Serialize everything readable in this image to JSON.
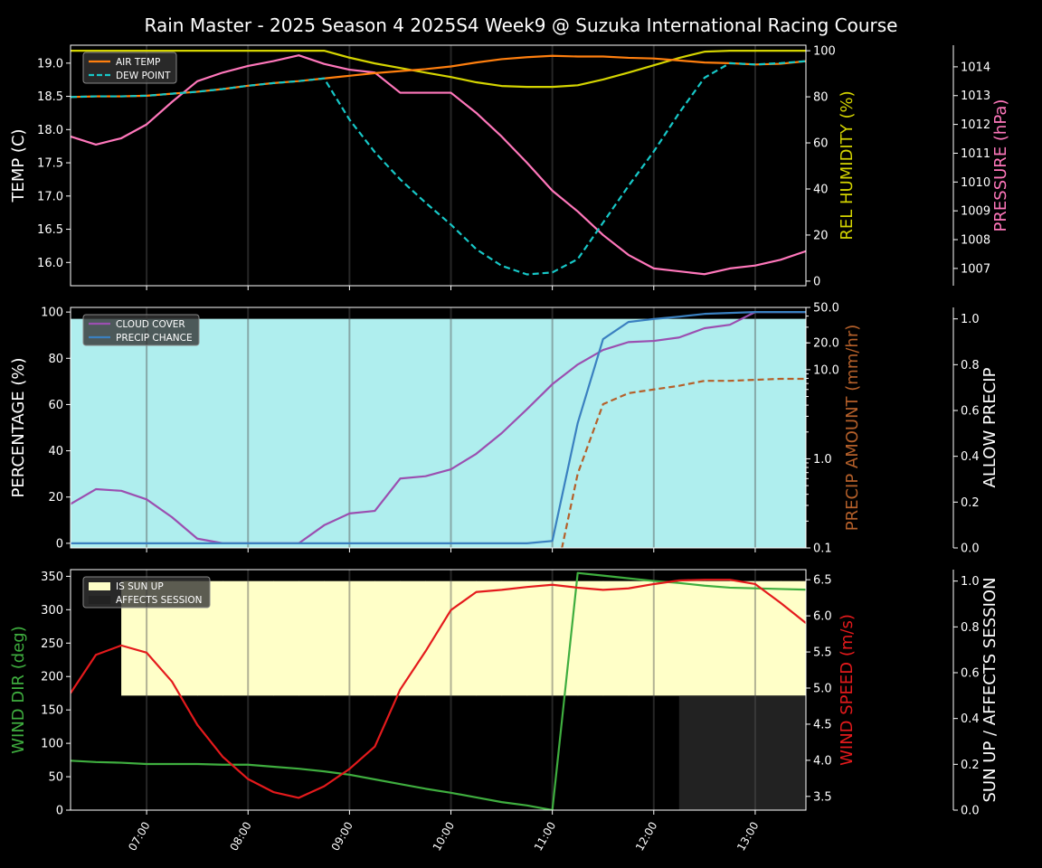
{
  "title": "Rain Master - 2025 Season 4 2025S4 Week9 @ Suzuka International Racing Course",
  "x_tick_labels": [
    "07:00",
    "08:00",
    "09:00",
    "10:00",
    "11:00",
    "12:00",
    "13:00"
  ],
  "chart_data": [
    {
      "type": "line",
      "name": "weather-panel",
      "x_hours": [
        6.25,
        6.5,
        6.75,
        7,
        7.25,
        7.5,
        7.75,
        8,
        8.25,
        8.5,
        8.75,
        9,
        9.25,
        9.5,
        9.75,
        10,
        10.25,
        10.5,
        10.75,
        11,
        11.25,
        11.5,
        11.75,
        12,
        12.25,
        12.5,
        12.75,
        13,
        13.25,
        13.5
      ],
      "xlim": [
        6.25,
        13.5
      ],
      "axes": [
        {
          "id": "temp",
          "label": "TEMP (C)",
          "color": "#ffffff",
          "ylim": [
            15.65,
            19.27
          ],
          "ticks": [
            16.0,
            16.5,
            17.0,
            17.5,
            18.0,
            18.5,
            19.0
          ],
          "decimals": 1,
          "side": "left"
        },
        {
          "id": "hum",
          "label": "REL HUMIDITY (%)",
          "color": "#d4d400",
          "ylim": [
            -2,
            102.4
          ],
          "ticks": [
            0,
            20,
            40,
            60,
            80,
            100
          ],
          "decimals": 0,
          "side": "right"
        },
        {
          "id": "pres",
          "label": "PRESSURE (hPa)",
          "color": "#ff77bb",
          "ylim": [
            1006.4,
            1014.75
          ],
          "ticks": [
            1007,
            1008,
            1009,
            1010,
            1011,
            1012,
            1013,
            1014
          ],
          "decimals": 0,
          "side": "right2"
        }
      ],
      "fills": [],
      "series": [
        {
          "name": "REL HUMIDITY",
          "axis": "hum",
          "color": "#d4d400",
          "dash": false,
          "legend": false,
          "values": [
            100,
            100,
            100,
            100,
            100,
            100,
            100,
            100,
            100,
            100,
            100,
            97,
            94.5,
            92.5,
            90.5,
            88.6,
            86.3,
            84.7,
            84.3,
            84.3,
            85,
            87.5,
            90.5,
            93.7,
            96.9,
            99.6,
            100,
            100,
            100,
            100
          ]
        },
        {
          "name": "PRESSURE",
          "axis": "pres",
          "color": "#ff77bb",
          "dash": false,
          "legend": false,
          "values": [
            1011.58,
            1011.3,
            1011.52,
            1012.0,
            1012.78,
            1013.5,
            1013.8,
            1014.03,
            1014.2,
            1014.4,
            1014.1,
            1013.9,
            1013.8,
            1013.1,
            1013.1,
            1013.1,
            1012.4,
            1011.58,
            1010.67,
            1009.7,
            1008.98,
            1008.16,
            1007.47,
            1007.0,
            1006.9,
            1006.8,
            1007.0,
            1007.1,
            1007.3,
            1007.6
          ]
        },
        {
          "name": "AIR TEMP",
          "axis": "temp",
          "color": "#ff7f0e",
          "dash": false,
          "legend": true,
          "values": [
            18.49,
            18.5,
            18.5,
            18.51,
            18.54,
            18.57,
            18.61,
            18.66,
            18.7,
            18.73,
            18.77,
            18.81,
            18.85,
            18.88,
            18.91,
            18.95,
            19.01,
            19.06,
            19.09,
            19.11,
            19.1,
            19.1,
            19.08,
            19.07,
            19.04,
            19.01,
            19.0,
            18.98,
            18.99,
            19.03
          ]
        },
        {
          "name": "DEW POINT",
          "axis": "temp",
          "color": "#17c8c8",
          "dash": true,
          "legend": true,
          "values": [
            18.49,
            18.5,
            18.5,
            18.51,
            18.54,
            18.57,
            18.61,
            18.66,
            18.7,
            18.73,
            18.77,
            18.15,
            17.66,
            17.25,
            16.9,
            16.57,
            16.2,
            15.95,
            15.82,
            15.85,
            16.05,
            16.6,
            17.15,
            17.67,
            18.25,
            18.78,
            19.0,
            18.98,
            19.0,
            19.03
          ]
        }
      ]
    },
    {
      "type": "line",
      "name": "precip-panel",
      "axes": [
        {
          "id": "pct",
          "label": "PERCENTAGE (%)",
          "color": "#ffffff",
          "ylim": [
            -2,
            102
          ],
          "ticks": [
            0,
            20,
            40,
            60,
            80,
            100
          ],
          "decimals": 0,
          "side": "left"
        },
        {
          "id": "amt",
          "label": "PRECIP AMOUNT (mm/hr)",
          "color": "#b5602a",
          "ylim": [
            0.1,
            50
          ],
          "log": true,
          "ticks": [
            0.1,
            1.0,
            10.0,
            20.0,
            50.0
          ],
          "decimals": 1,
          "side": "right"
        },
        {
          "id": "allow",
          "label": "ALLOW PRECIP",
          "color": "#ffffff",
          "ylim": [
            0,
            1.05
          ],
          "ticks": [
            0.0,
            0.2,
            0.4,
            0.6,
            0.8,
            1.0
          ],
          "decimals": 1,
          "side": "right2"
        }
      ],
      "fills": [
        {
          "name": "ALLOW PRECIP",
          "axis": "allow",
          "color": "#afeeee",
          "base": 0,
          "step": false,
          "values": [
            1,
            1,
            1,
            1,
            1,
            1,
            1,
            1,
            1,
            1,
            1,
            1,
            1,
            1,
            1,
            1,
            1,
            1,
            1,
            1,
            1,
            1,
            1,
            1,
            1,
            1,
            1,
            1,
            1,
            1
          ]
        }
      ],
      "series": [
        {
          "name": "CLOUD COVER",
          "axis": "pct",
          "color": "#9b4fb0",
          "dash": false,
          "legend": true,
          "values": [
            17,
            23.4,
            22.7,
            19,
            11.3,
            2,
            0,
            0,
            0,
            0,
            7.8,
            12.9,
            14,
            28,
            29,
            32,
            38.7,
            47.6,
            58,
            68.8,
            77.3,
            83.6,
            87,
            87.5,
            89,
            93,
            94.5,
            100,
            100,
            100
          ]
        },
        {
          "name": "PRECIP CHANCE",
          "axis": "pct",
          "color": "#3a80c0",
          "dash": false,
          "legend": true,
          "values": [
            0,
            0,
            0,
            0,
            0,
            0,
            0,
            0,
            0,
            0,
            0,
            0,
            0,
            0,
            0,
            0,
            0,
            0,
            0,
            1,
            52,
            88.3,
            95.7,
            97,
            98,
            99.2,
            99.6,
            100,
            100,
            100
          ]
        },
        {
          "name": "PRECIP AMOUNT",
          "axis": "amt",
          "color": "#b5602a",
          "dash": true,
          "legend": false,
          "values": [
            0,
            0,
            0,
            0,
            0,
            0,
            0,
            0,
            0,
            0,
            0,
            0,
            0,
            0,
            0,
            0,
            0,
            0,
            0,
            0,
            0.68,
            4.1,
            5.45,
            6.0,
            6.6,
            7.5,
            7.5,
            7.7,
            7.9,
            7.9
          ]
        }
      ]
    },
    {
      "type": "line",
      "name": "wind-panel",
      "axes": [
        {
          "id": "dir",
          "label": "WIND DIR (deg)",
          "color": "#3fae3f",
          "ylim": [
            0,
            360
          ],
          "ticks": [
            0,
            50,
            100,
            150,
            200,
            250,
            300,
            350
          ],
          "decimals": 0,
          "side": "left"
        },
        {
          "id": "spd",
          "label": "WIND SPEED (m/s)",
          "color": "#e41a1c",
          "ylim": [
            3.31,
            6.64
          ],
          "ticks": [
            3.5,
            4.0,
            4.5,
            5.0,
            5.5,
            6.0,
            6.5
          ],
          "decimals": 1,
          "side": "right"
        },
        {
          "id": "sun",
          "label": "SUN UP / AFFECTS SESSION",
          "color": "#ffffff",
          "ylim": [
            0,
            1.05
          ],
          "ticks": [
            0.0,
            0.2,
            0.4,
            0.6,
            0.8,
            1.0
          ],
          "decimals": 1,
          "side": "right2"
        }
      ],
      "fills": [
        {
          "name": "IS SUN UP",
          "axis": "sun",
          "color": "#ffffc8",
          "base": 0.5,
          "scale": 0.5,
          "step": true,
          "legend": true,
          "values": [
            0,
            0,
            1,
            1,
            1,
            1,
            1,
            1,
            1,
            1,
            1,
            1,
            1,
            1,
            1,
            1,
            1,
            1,
            1,
            1,
            1,
            1,
            1,
            1,
            1,
            1,
            1,
            1,
            1,
            1
          ]
        },
        {
          "name": "AFFECTS SESSION",
          "axis": "sun",
          "color": "#222222",
          "base": 0,
          "scale": 0.5,
          "step": true,
          "legend": true,
          "values": [
            0,
            0,
            0,
            0,
            0,
            0,
            0,
            0,
            0,
            0,
            0,
            0,
            0,
            0,
            0,
            0,
            0,
            0,
            0,
            0,
            0,
            0,
            0,
            0,
            1,
            1,
            1,
            1,
            1,
            1
          ]
        }
      ],
      "series": [
        {
          "name": "WIND DIR",
          "axis": "dir",
          "color": "#3fae3f",
          "dash": false,
          "legend": false,
          "values": [
            74,
            72,
            71,
            69,
            69,
            69,
            68,
            68,
            65,
            62,
            58,
            53,
            46,
            39,
            32,
            26,
            19,
            12,
            7,
            0,
            355,
            351,
            347,
            343,
            340,
            336,
            333,
            332,
            331,
            330
          ]
        },
        {
          "name": "WIND SPEED",
          "axis": "spd",
          "color": "#e41a1c",
          "dash": false,
          "legend": false,
          "values": [
            4.93,
            5.46,
            5.59,
            5.49,
            5.09,
            4.49,
            4.05,
            3.74,
            3.56,
            3.48,
            3.64,
            3.88,
            4.19,
            4.98,
            5.51,
            6.08,
            6.33,
            6.36,
            6.4,
            6.43,
            6.39,
            6.36,
            6.38,
            6.44,
            6.49,
            6.5,
            6.5,
            6.44,
            6.18,
            5.9
          ]
        }
      ]
    }
  ]
}
